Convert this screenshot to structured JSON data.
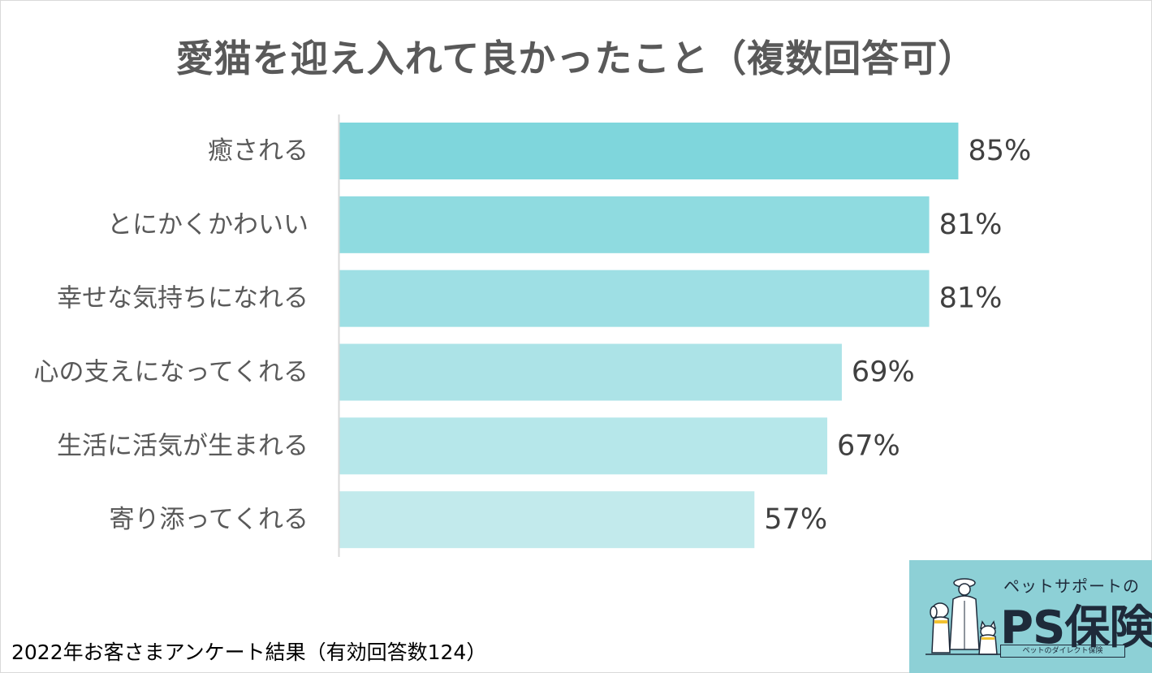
{
  "title": "愛猫を迎え入れて良かったこと（複数回答可）",
  "footnote": "2022年お客さまアンケート結果（有効回答数124）",
  "logo": {
    "tagline": "ペットサポートの",
    "name": "PS保険",
    "sub": "ペットのダイレクト保険"
  },
  "colors": {
    "bars": [
      "#7fd6dc",
      "#8fdbe0",
      "#9edfe4",
      "#ace3e7",
      "#b6e7ea",
      "#c2eaec"
    ],
    "axis": "#d9d9d9"
  },
  "chart_data": {
    "type": "bar",
    "orientation": "horizontal",
    "categories": [
      "癒される",
      "とにかくかわいい",
      "幸せな気持ちになれる",
      "心の支えになってくれる",
      "生活に活気が生まれる",
      "寄り添ってくれる"
    ],
    "values": [
      85,
      81,
      81,
      69,
      67,
      57
    ],
    "value_labels": [
      "85%",
      "81%",
      "81%",
      "69%",
      "67%",
      "57%"
    ],
    "xlim": [
      0,
      100
    ],
    "grid": false,
    "legend": "none"
  }
}
